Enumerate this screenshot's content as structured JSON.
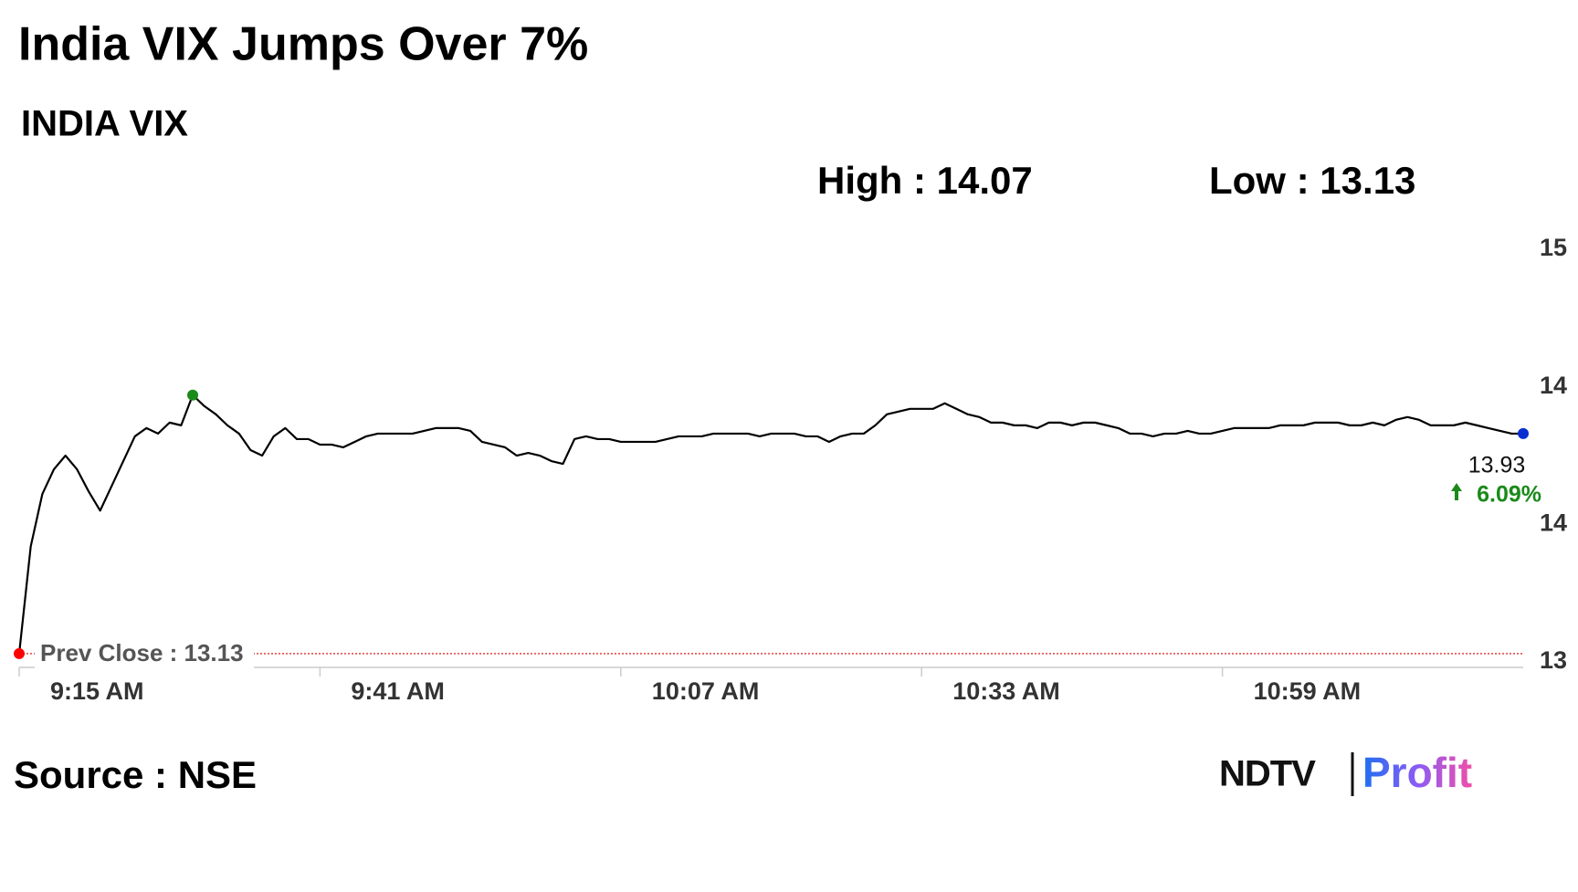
{
  "chart_data": {
    "type": "line",
    "title": "India VIX Jumps Over 7%",
    "subtitle": "INDIA VIX",
    "high_label": "High : 14.07",
    "low_label": "Low : 13.13",
    "source": "Source : NSE",
    "logo": {
      "left": "NDTV",
      "right": "Profit"
    },
    "prev_close": 13.13,
    "prev_close_label": "Prev Close : 13.13",
    "last_label": "13.93",
    "change_label": "6.09%",
    "x": [
      555,
      556,
      557,
      558,
      559,
      560,
      561,
      562,
      563,
      564,
      565,
      566,
      567,
      568,
      569,
      570,
      571,
      572,
      573,
      574,
      575,
      576,
      577,
      578,
      579,
      580,
      581,
      582,
      583,
      584,
      585,
      586,
      587,
      588,
      589,
      590,
      591,
      592,
      593,
      594,
      595,
      596,
      597,
      598,
      599,
      600,
      601,
      602,
      603,
      604,
      605,
      606,
      607,
      608,
      609,
      610,
      611,
      612,
      613,
      614,
      615,
      616,
      617,
      618,
      619,
      620,
      621,
      622,
      623,
      624,
      625,
      626,
      627,
      628,
      629,
      630,
      631,
      632,
      633,
      634,
      635,
      636,
      637,
      638,
      639,
      640,
      641,
      642,
      643,
      644,
      645,
      646,
      647,
      648,
      649,
      650,
      651,
      652,
      653,
      654,
      655,
      656,
      657,
      658,
      659,
      660,
      661,
      662,
      663,
      664,
      665,
      666,
      667,
      668,
      669,
      670,
      671,
      672,
      673,
      674,
      675,
      676,
      677,
      678,
      679,
      680,
      681,
      682,
      683,
      684,
      685
    ],
    "series": [
      {
        "color": "#000000",
        "values": [
          13.13,
          13.52,
          13.71,
          13.8,
          13.85,
          13.8,
          13.72,
          13.65,
          13.74,
          13.83,
          13.92,
          13.95,
          13.93,
          13.97,
          13.96,
          14.07,
          14.03,
          14.0,
          13.96,
          13.93,
          13.87,
          13.85,
          13.92,
          13.95,
          13.91,
          13.91,
          13.89,
          13.89,
          13.88,
          13.9,
          13.92,
          13.93,
          13.93,
          13.93,
          13.93,
          13.94,
          13.95,
          13.95,
          13.95,
          13.94,
          13.9,
          13.89,
          13.88,
          13.85,
          13.86,
          13.85,
          13.83,
          13.82,
          13.91,
          13.92,
          13.91,
          13.91,
          13.9,
          13.9,
          13.9,
          13.9,
          13.91,
          13.92,
          13.92,
          13.92,
          13.93,
          13.93,
          13.93,
          13.93,
          13.92,
          13.93,
          13.93,
          13.93,
          13.92,
          13.92,
          13.9,
          13.92,
          13.93,
          13.93,
          13.96,
          14.0,
          14.01,
          14.02,
          14.02,
          14.02,
          14.04,
          14.02,
          14.0,
          13.99,
          13.97,
          13.97,
          13.96,
          13.96,
          13.95,
          13.97,
          13.97,
          13.96,
          13.97,
          13.97,
          13.96,
          13.95,
          13.93,
          13.93,
          13.92,
          13.93,
          13.93,
          13.94,
          13.93,
          13.93,
          13.94,
          13.95,
          13.95,
          13.95,
          13.95,
          13.96,
          13.96,
          13.96,
          13.97,
          13.97,
          13.97,
          13.96,
          13.96,
          13.97,
          13.96,
          13.98,
          13.99,
          13.98,
          13.96,
          13.96,
          13.96,
          13.97,
          13.96,
          13.95,
          13.94,
          13.93,
          13.93
        ]
      }
    ],
    "markers": [
      {
        "x": 555,
        "y": 13.13,
        "color": "#ff0000"
      },
      {
        "x": 570,
        "y": 14.07,
        "color": "#1a8a1a"
      },
      {
        "x": 685,
        "y": 13.93,
        "color": "#0a2fd0"
      }
    ],
    "xlim": [
      555,
      685
    ],
    "xticks": [
      {
        "value": 555,
        "label": "9:15 AM"
      },
      {
        "value": 581,
        "label": "9:41 AM"
      },
      {
        "value": 607,
        "label": "10:07 AM"
      },
      {
        "value": 633,
        "label": "10:33 AM"
      },
      {
        "value": 659,
        "label": "10:59 AM"
      }
    ],
    "ylim": [
      13.08,
      14.65
    ],
    "yticks": [
      {
        "value": 13.1,
        "label": "13"
      },
      {
        "value": 13.6,
        "label": "14"
      },
      {
        "value": 14.1,
        "label": "14"
      },
      {
        "value": 14.6,
        "label": "15"
      }
    ]
  }
}
